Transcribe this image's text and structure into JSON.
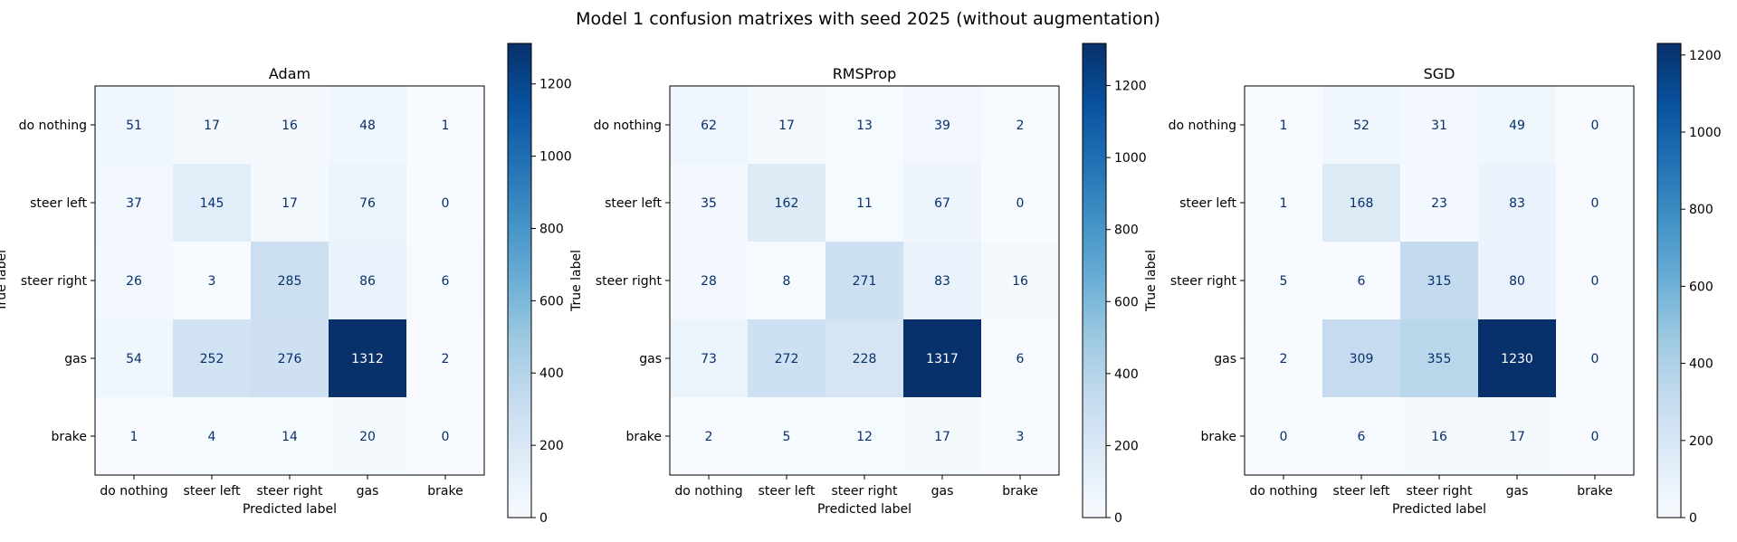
{
  "figure": {
    "title": "Model 1 confusion matrixes with seed 2025 (without augmentation)"
  },
  "chart_data": [
    {
      "type": "heatmap",
      "title": "Adam",
      "xlabel": "Predicted label",
      "ylabel": "True label",
      "x_categories": [
        "do nothing",
        "steer left",
        "steer right",
        "gas",
        "brake"
      ],
      "y_categories": [
        "do nothing",
        "steer left",
        "steer right",
        "gas",
        "brake"
      ],
      "values": [
        [
          51,
          17,
          16,
          48,
          1
        ],
        [
          37,
          145,
          17,
          76,
          0
        ],
        [
          26,
          3,
          285,
          86,
          6
        ],
        [
          54,
          252,
          276,
          1312,
          2
        ],
        [
          1,
          4,
          14,
          20,
          0
        ]
      ],
      "colorbar": {
        "ticks": [
          0,
          200,
          400,
          600,
          800,
          1000,
          1200
        ],
        "range": [
          0,
          1312
        ],
        "colormap": "Blues"
      }
    },
    {
      "type": "heatmap",
      "title": "RMSProp",
      "xlabel": "Predicted label",
      "ylabel": "True label",
      "x_categories": [
        "do nothing",
        "steer left",
        "steer right",
        "gas",
        "brake"
      ],
      "y_categories": [
        "do nothing",
        "steer left",
        "steer right",
        "gas",
        "brake"
      ],
      "values": [
        [
          62,
          17,
          13,
          39,
          2
        ],
        [
          35,
          162,
          11,
          67,
          0
        ],
        [
          28,
          8,
          271,
          83,
          16
        ],
        [
          73,
          272,
          228,
          1317,
          6
        ],
        [
          2,
          5,
          12,
          17,
          3
        ]
      ],
      "colorbar": {
        "ticks": [
          0,
          200,
          400,
          600,
          800,
          1000,
          1200
        ],
        "range": [
          0,
          1317
        ],
        "colormap": "Blues"
      }
    },
    {
      "type": "heatmap",
      "title": "SGD",
      "xlabel": "Predicted label",
      "ylabel": "True label",
      "x_categories": [
        "do nothing",
        "steer left",
        "steer right",
        "gas",
        "brake"
      ],
      "y_categories": [
        "do nothing",
        "steer left",
        "steer right",
        "gas",
        "brake"
      ],
      "values": [
        [
          1,
          52,
          31,
          49,
          0
        ],
        [
          1,
          168,
          23,
          83,
          0
        ],
        [
          5,
          6,
          315,
          80,
          0
        ],
        [
          2,
          309,
          355,
          1230,
          0
        ],
        [
          0,
          6,
          16,
          17,
          0
        ]
      ],
      "colorbar": {
        "ticks": [
          0,
          200,
          400,
          600,
          800,
          1000,
          1200
        ],
        "range": [
          0,
          1230
        ],
        "colormap": "Blues"
      }
    }
  ]
}
